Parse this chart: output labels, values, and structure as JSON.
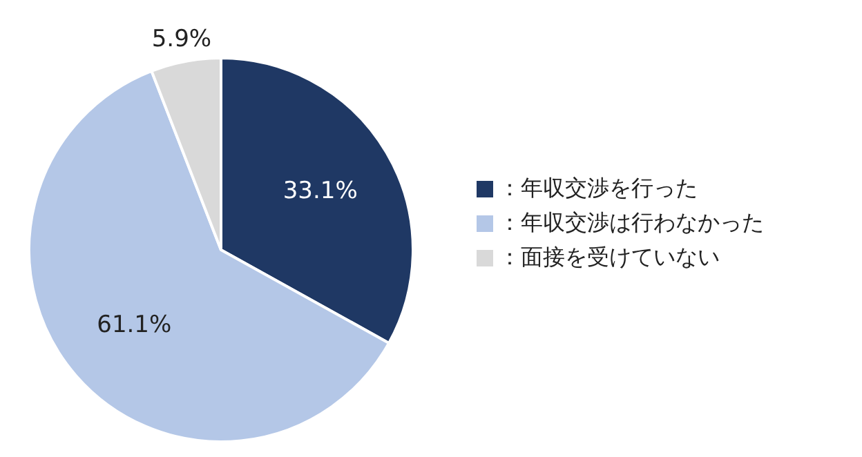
{
  "chart_data": {
    "type": "pie",
    "categories": [
      "：年収交渉を行った",
      "：年収交渉は行わなかった",
      "：面接を受けていない"
    ],
    "values": [
      33.1,
      61.1,
      5.9
    ],
    "colors": [
      "#1f3864",
      "#b4c7e7",
      "#d9d9d9"
    ],
    "value_labels": [
      "33.1%",
      "61.1%",
      "5.9%"
    ],
    "legend": "right"
  }
}
